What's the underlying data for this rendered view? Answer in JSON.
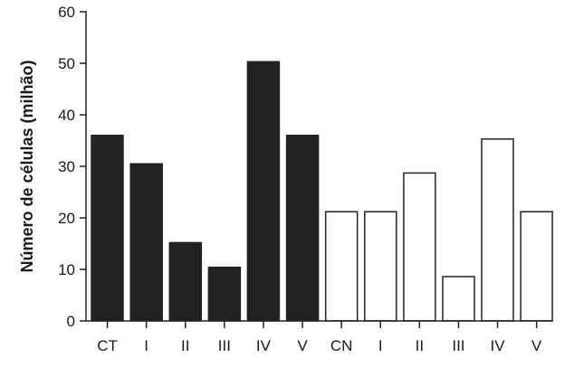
{
  "chart_data": {
    "type": "bar",
    "title": "",
    "xlabel": "",
    "ylabel": "Número de células (milhão)",
    "ylim": [
      0,
      60
    ],
    "yticks": [
      0,
      10,
      20,
      30,
      40,
      50,
      60
    ],
    "grid": false,
    "categories": [
      "CT",
      "I",
      "II",
      "III",
      "IV",
      "V",
      "CN",
      "I",
      "II",
      "III",
      "IV",
      "V"
    ],
    "values": [
      36,
      30.5,
      15.2,
      10.4,
      50.3,
      36,
      21.2,
      21.2,
      28.7,
      8.6,
      35.3,
      21.2
    ],
    "bar_fill": [
      "#222222",
      "#222222",
      "#222222",
      "#222222",
      "#222222",
      "#222222",
      "#ffffff",
      "#ffffff",
      "#ffffff",
      "#ffffff",
      "#ffffff",
      "#ffffff"
    ],
    "bar_stroke": "#222222",
    "axis_color": "#222222"
  }
}
